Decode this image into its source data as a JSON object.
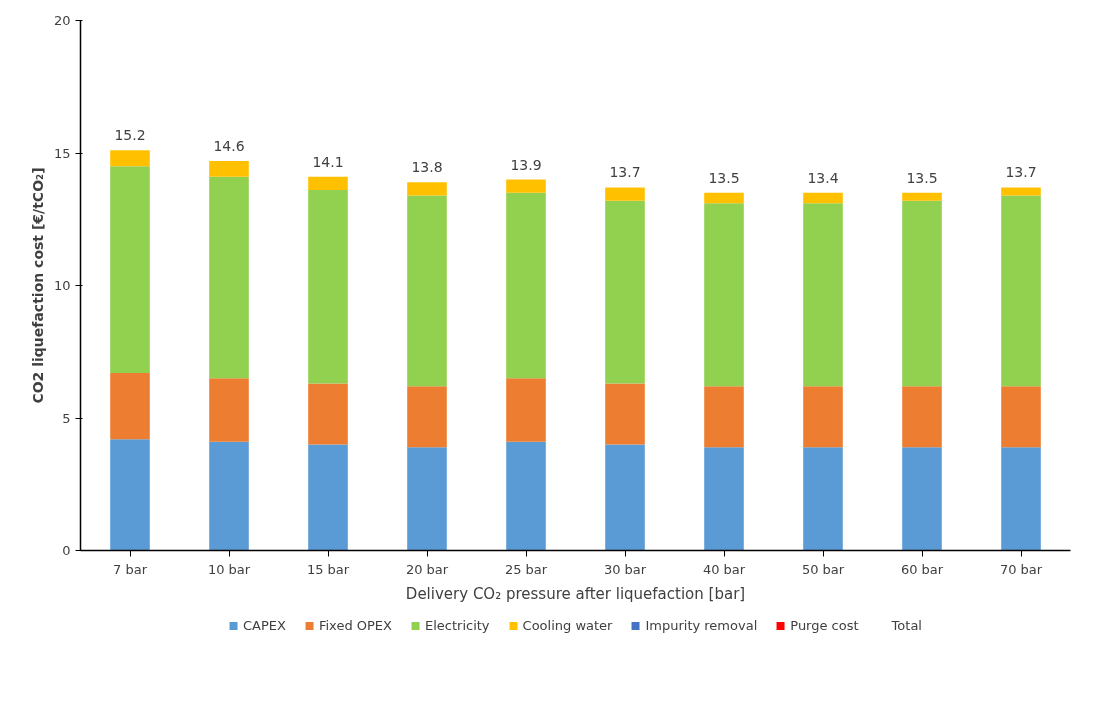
{
  "chart_data": {
    "type": "bar",
    "stacked": true,
    "ylabel": "CO2 liquefaction cost [€/tCO₂]",
    "xlabel": "Delivery CO₂ pressure after liquefaction [bar]",
    "categories": [
      "7 bar",
      "10 bar",
      "15 bar",
      "20 bar",
      "25 bar",
      "30 bar",
      "40 bar",
      "50 bar",
      "60 bar",
      "70 bar"
    ],
    "ylim": [
      0,
      20
    ],
    "yticks": [
      0,
      5,
      10,
      15,
      20
    ],
    "grid": false,
    "legend": "bottom",
    "series": [
      {
        "name": "CAPEX",
        "color": "#5b9bd5",
        "values": [
          4.2,
          4.1,
          4.0,
          3.9,
          4.1,
          4.0,
          3.9,
          3.9,
          3.9,
          3.9
        ]
      },
      {
        "name": "Fixed OPEX",
        "color": "#ed7d31",
        "values": [
          2.5,
          2.4,
          2.3,
          2.3,
          2.4,
          2.3,
          2.3,
          2.3,
          2.3,
          2.3
        ]
      },
      {
        "name": "Electricity",
        "color": "#92d050",
        "values": [
          7.8,
          7.6,
          7.3,
          7.2,
          7.0,
          6.9,
          6.9,
          6.9,
          7.0,
          7.2
        ]
      },
      {
        "name": "Cooling water",
        "color": "#ffc000",
        "values": [
          0.6,
          0.6,
          0.5,
          0.5,
          0.5,
          0.5,
          0.4,
          0.4,
          0.3,
          0.3
        ]
      },
      {
        "name": "Impurity removal",
        "color": "#4472c4",
        "values": [
          0,
          0,
          0,
          0,
          0,
          0,
          0,
          0,
          0,
          0
        ]
      },
      {
        "name": "Purge cost",
        "color": "#ff0000",
        "values": [
          0,
          0,
          0,
          0,
          0,
          0,
          0,
          0,
          0,
          0
        ]
      },
      {
        "name": "Total",
        "color": null,
        "values": [
          null,
          null,
          null,
          null,
          null,
          null,
          null,
          null,
          null,
          null
        ]
      }
    ],
    "totals": [
      "15.2",
      "14.6",
      "14.1",
      "13.8",
      "13.9",
      "13.7",
      "13.5",
      "13.4",
      "13.5",
      "13.7"
    ]
  }
}
